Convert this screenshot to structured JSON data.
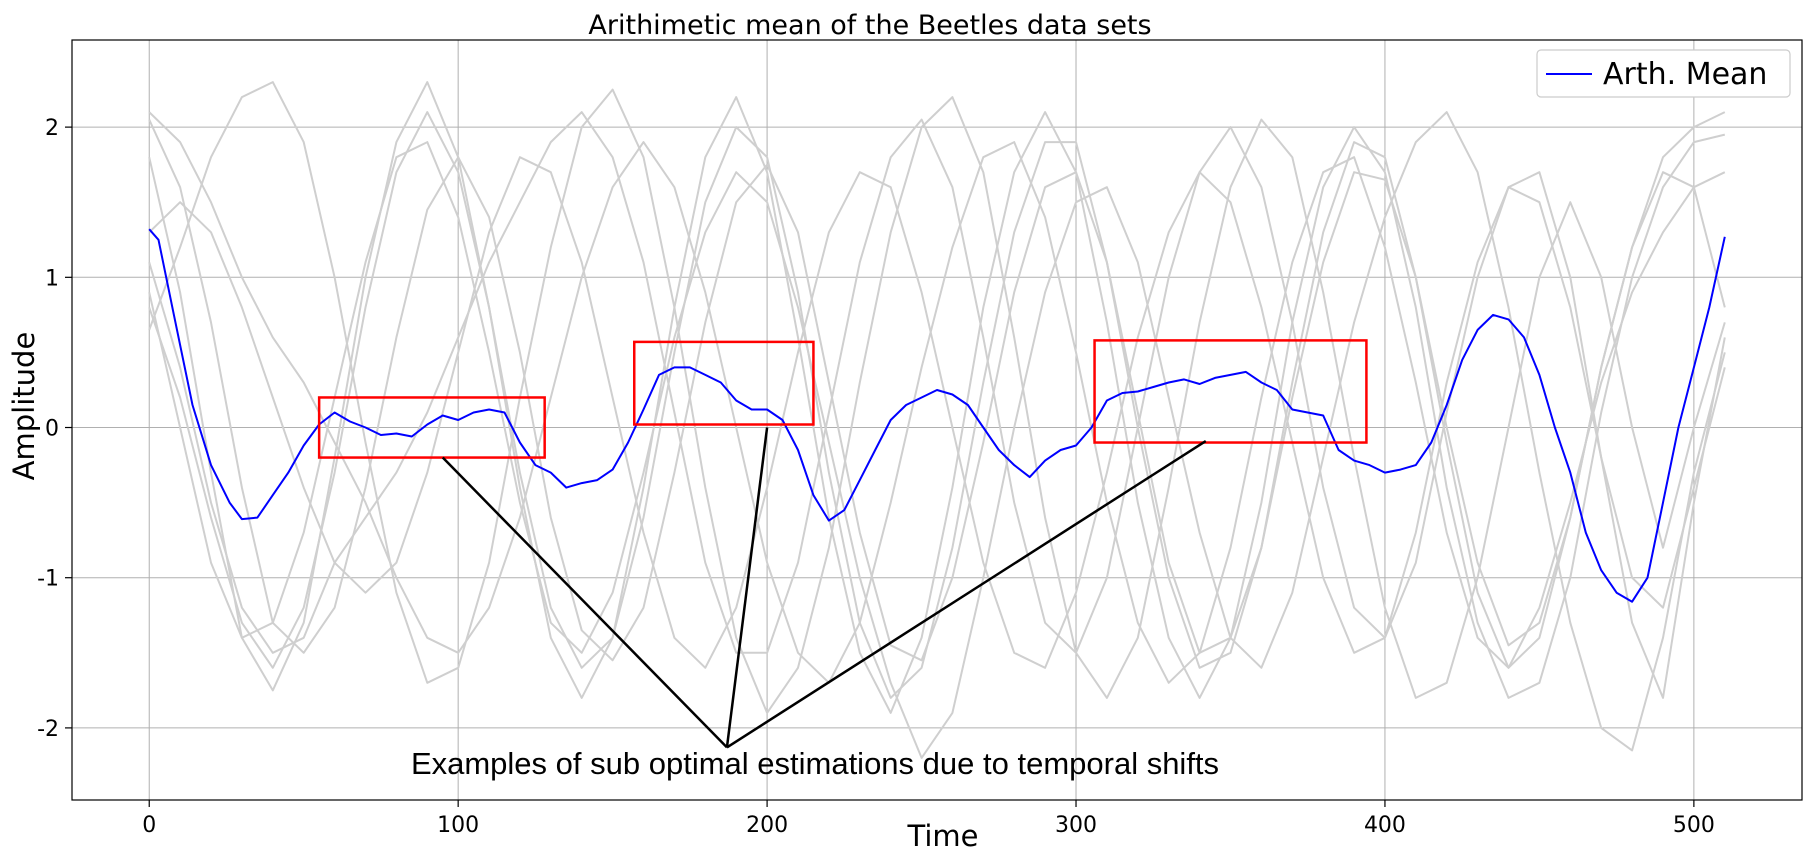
{
  "chart_data": {
    "type": "line",
    "title": "Arithimetic mean of the Beetles data sets",
    "xlabel": "Time",
    "ylabel": "Amplitude",
    "xlim": [
      -25,
      535
    ],
    "ylim": [
      -2.48,
      2.58
    ],
    "x_ticks": [
      0,
      100,
      200,
      300,
      400,
      500
    ],
    "y_ticks": [
      2,
      1,
      0,
      -1,
      -2
    ],
    "grid": true,
    "legend": {
      "placement": "top-right",
      "entries": [
        "Arth. Mean"
      ]
    },
    "colors": {
      "mean": "#0000ff",
      "background_series": "#cfcfcf",
      "highlight_box": "#ff0000",
      "annotation": "#000000",
      "grid": "#b0b0b0"
    },
    "series": [
      {
        "name": "Arth. Mean",
        "x": [
          0,
          3,
          8,
          14,
          20,
          26,
          30,
          35,
          40,
          45,
          50,
          55,
          60,
          65,
          70,
          75,
          80,
          85,
          90,
          95,
          100,
          105,
          110,
          115,
          120,
          125,
          130,
          135,
          140,
          145,
          150,
          155,
          160,
          165,
          170,
          175,
          180,
          185,
          190,
          195,
          200,
          205,
          210,
          215,
          220,
          225,
          230,
          235,
          240,
          245,
          250,
          255,
          260,
          265,
          270,
          275,
          280,
          285,
          290,
          295,
          300,
          305,
          310,
          315,
          320,
          325,
          330,
          335,
          340,
          345,
          350,
          355,
          360,
          365,
          370,
          375,
          380,
          385,
          390,
          395,
          400,
          405,
          410,
          415,
          420,
          425,
          430,
          435,
          440,
          445,
          450,
          455,
          460,
          465,
          470,
          475,
          480,
          485,
          490,
          495,
          500,
          505,
          510
        ],
        "y": [
          1.32,
          1.25,
          0.75,
          0.15,
          -0.25,
          -0.5,
          -0.61,
          -0.6,
          -0.45,
          -0.3,
          -0.12,
          0.02,
          0.1,
          0.04,
          0.0,
          -0.05,
          -0.04,
          -0.06,
          0.02,
          0.08,
          0.05,
          0.1,
          0.12,
          0.1,
          -0.1,
          -0.25,
          -0.3,
          -0.4,
          -0.37,
          -0.35,
          -0.28,
          -0.1,
          0.12,
          0.35,
          0.4,
          0.4,
          0.35,
          0.3,
          0.18,
          0.12,
          0.12,
          0.05,
          -0.15,
          -0.45,
          -0.62,
          -0.55,
          -0.35,
          -0.15,
          0.05,
          0.15,
          0.2,
          0.25,
          0.22,
          0.15,
          0.0,
          -0.15,
          -0.25,
          -0.33,
          -0.22,
          -0.15,
          -0.12,
          0.0,
          0.18,
          0.23,
          0.24,
          0.27,
          0.3,
          0.32,
          0.29,
          0.33,
          0.35,
          0.37,
          0.3,
          0.25,
          0.12,
          0.1,
          0.08,
          -0.15,
          -0.22,
          -0.25,
          -0.3,
          -0.28,
          -0.25,
          -0.1,
          0.15,
          0.45,
          0.65,
          0.75,
          0.72,
          0.6,
          0.35,
          0.0,
          -0.3,
          -0.7,
          -0.95,
          -1.1,
          -1.16,
          -1.0,
          -0.5,
          0.0,
          0.4,
          0.8,
          1.27
        ]
      }
    ],
    "background_series": [
      {
        "x": [
          0,
          10,
          20,
          30,
          40,
          50,
          60,
          70,
          80,
          90,
          100,
          110,
          120,
          130,
          140,
          150,
          160,
          170,
          180,
          190,
          200,
          210,
          220,
          230,
          240,
          250,
          260,
          270,
          280,
          290,
          300,
          310,
          320,
          330,
          340,
          350,
          360,
          370,
          380,
          390,
          400,
          410,
          420,
          430,
          440,
          450,
          460,
          470,
          480,
          490,
          500,
          510
        ],
        "y": [
          2.05,
          1.6,
          0.7,
          -0.4,
          -1.3,
          -1.5,
          -1.2,
          -0.4,
          0.6,
          1.45,
          1.8,
          1.4,
          0.5,
          -0.6,
          -1.35,
          -1.55,
          -1.2,
          -0.3,
          0.7,
          1.5,
          1.75,
          1.3,
          0.3,
          -0.7,
          -1.45,
          -1.55,
          -1.0,
          -0.1,
          0.9,
          1.6,
          1.7,
          1.1,
          0.1,
          -0.9,
          -1.5,
          -1.4,
          -0.8,
          0.2,
          1.1,
          1.7,
          1.65,
          1.0,
          0.0,
          -0.9,
          -1.45,
          -1.3,
          -0.6,
          0.4,
          1.2,
          1.8,
          2.0,
          2.1
        ]
      },
      {
        "x": [
          0,
          10,
          20,
          30,
          40,
          50,
          60,
          70,
          80,
          90,
          100,
          110,
          120,
          130,
          140,
          150,
          160,
          170,
          180,
          190,
          200,
          210,
          220,
          230,
          240,
          250,
          260,
          270,
          280,
          290,
          300,
          310,
          320,
          330,
          340,
          350,
          360,
          370,
          380,
          390,
          400,
          410,
          420,
          430,
          440,
          450,
          460,
          470,
          480,
          490,
          500,
          510
        ],
        "y": [
          0.8,
          0.2,
          -0.6,
          -1.3,
          -1.6,
          -1.2,
          -0.3,
          0.8,
          1.7,
          2.1,
          1.7,
          0.8,
          -0.3,
          -1.2,
          -1.6,
          -1.4,
          -0.6,
          0.5,
          1.5,
          2.0,
          1.8,
          0.9,
          -0.3,
          -1.3,
          -1.8,
          -1.6,
          -0.8,
          0.3,
          1.3,
          1.9,
          1.9,
          1.1,
          0.0,
          -1.0,
          -1.6,
          -1.5,
          -0.8,
          0.3,
          1.3,
          1.9,
          1.8,
          1.0,
          -0.1,
          -1.1,
          -1.6,
          -1.4,
          -0.6,
          0.4,
          1.2,
          1.7,
          1.6,
          0.8
        ]
      },
      {
        "x": [
          0,
          10,
          20,
          30,
          40,
          50,
          60,
          70,
          80,
          90,
          100,
          110,
          120,
          130,
          140,
          150,
          160,
          170,
          180,
          190,
          200,
          210,
          220,
          230,
          240,
          250,
          260,
          270,
          280,
          290,
          300,
          310,
          320,
          330,
          340,
          350,
          360,
          370,
          380,
          390,
          400,
          410,
          420,
          430,
          440,
          450,
          460,
          470,
          480,
          490,
          500,
          510
        ],
        "y": [
          1.8,
          0.9,
          -0.3,
          -1.4,
          -1.75,
          -1.3,
          -0.2,
          1.0,
          1.9,
          2.3,
          1.8,
          0.8,
          -0.4,
          -1.4,
          -1.8,
          -1.4,
          -0.4,
          0.8,
          1.8,
          2.2,
          1.7,
          0.6,
          -0.6,
          -1.5,
          -1.9,
          -1.4,
          -0.4,
          0.8,
          1.7,
          2.1,
          1.7,
          0.7,
          -0.5,
          -1.4,
          -1.8,
          -1.4,
          -0.5,
          0.7,
          1.6,
          2.0,
          1.7,
          0.8,
          -0.4,
          -1.3,
          -1.8,
          -1.7,
          -1.0,
          0.1,
          1.0,
          1.6,
          1.9,
          1.95
        ]
      },
      {
        "x": [
          0,
          10,
          20,
          30,
          40,
          50,
          60,
          70,
          80,
          90,
          100,
          110,
          120,
          130,
          140,
          150,
          160,
          170,
          180,
          190,
          200,
          210,
          220,
          230,
          240,
          250,
          260,
          270,
          280,
          290,
          300,
          310,
          320,
          330,
          340,
          350,
          360,
          370,
          380,
          390,
          400,
          410,
          420,
          430,
          440,
          450,
          460,
          470,
          480,
          490,
          500,
          510
        ],
        "y": [
          0.65,
          1.2,
          1.8,
          2.2,
          2.3,
          1.9,
          1.0,
          -0.1,
          -1.1,
          -1.7,
          -1.6,
          -0.9,
          0.2,
          1.2,
          2.0,
          2.25,
          1.8,
          0.8,
          -0.4,
          -1.4,
          -1.9,
          -1.6,
          -0.8,
          0.3,
          1.3,
          2.0,
          2.2,
          1.7,
          0.6,
          -0.6,
          -1.5,
          -1.8,
          -1.4,
          -0.4,
          0.7,
          1.6,
          2.05,
          1.8,
          0.9,
          -0.2,
          -1.2,
          -1.8,
          -1.7,
          -1.0,
          0.0,
          1.0,
          1.5,
          1.0,
          0.0,
          -0.8,
          0.0,
          0.7
        ]
      },
      {
        "x": [
          0,
          10,
          20,
          30,
          40,
          50,
          60,
          70,
          80,
          90,
          100,
          110,
          120,
          130,
          140,
          150,
          160,
          170,
          180,
          190,
          200,
          210,
          220,
          230,
          240,
          250,
          260,
          270,
          280,
          290,
          300,
          310,
          320,
          330,
          340,
          350,
          360,
          370,
          380,
          390,
          400,
          410,
          420,
          430,
          440,
          450,
          460,
          470,
          480,
          490,
          500,
          510
        ],
        "y": [
          1.1,
          0.4,
          -0.5,
          -1.2,
          -1.5,
          -1.4,
          -0.9,
          -0.6,
          -0.3,
          0.1,
          0.6,
          1.1,
          1.5,
          1.9,
          2.1,
          1.8,
          1.1,
          0.1,
          -0.9,
          -1.5,
          -1.5,
          -0.9,
          0.1,
          1.1,
          1.8,
          2.05,
          1.6,
          0.6,
          -0.5,
          -1.3,
          -1.5,
          -1.0,
          0.0,
          1.0,
          1.7,
          2.0,
          1.6,
          0.7,
          -0.4,
          -1.2,
          -1.4,
          -0.9,
          0.1,
          1.0,
          1.6,
          1.7,
          1.0,
          -0.2,
          -1.3,
          -1.8,
          -0.5,
          0.6
        ]
      },
      {
        "x": [
          0,
          10,
          20,
          30,
          40,
          50,
          60,
          70,
          80,
          90,
          100,
          110,
          120,
          130,
          140,
          150,
          160,
          170,
          180,
          190,
          200,
          210,
          220,
          230,
          240,
          250,
          260,
          270,
          280,
          290,
          300,
          310,
          320,
          330,
          340,
          350,
          360,
          370,
          380,
          390,
          400,
          410,
          420,
          430,
          440,
          450,
          460,
          470,
          480,
          490,
          500,
          510
        ],
        "y": [
          2.1,
          1.9,
          1.5,
          1.0,
          0.6,
          0.3,
          -0.1,
          -0.5,
          -1.0,
          -1.4,
          -1.5,
          -1.2,
          -0.6,
          0.2,
          1.0,
          1.6,
          1.9,
          1.6,
          0.9,
          0.0,
          -0.9,
          -1.5,
          -1.7,
          -1.3,
          -0.5,
          0.4,
          1.2,
          1.8,
          1.9,
          1.4,
          0.5,
          -0.5,
          -1.3,
          -1.7,
          -1.5,
          -0.8,
          0.2,
          1.1,
          1.7,
          1.8,
          1.2,
          0.3,
          -0.7,
          -1.4,
          -1.6,
          -1.2,
          -0.5,
          0.3,
          0.9,
          1.3,
          1.6,
          1.7
        ]
      },
      {
        "x": [
          0,
          10,
          20,
          30,
          40,
          50,
          60,
          70,
          80,
          90,
          100,
          110,
          120,
          130,
          140,
          150,
          160,
          170,
          180,
          190,
          200,
          210,
          220,
          230,
          240,
          250,
          260,
          270,
          280,
          290,
          300,
          310,
          320,
          330,
          340,
          350,
          360,
          370,
          380,
          390,
          400,
          410,
          420,
          430,
          440,
          450,
          460,
          470,
          480,
          490,
          500,
          510
        ],
        "y": [
          0.9,
          0.0,
          -0.9,
          -1.4,
          -1.3,
          -0.7,
          0.2,
          1.1,
          1.8,
          1.9,
          1.4,
          0.5,
          -0.5,
          -1.3,
          -1.5,
          -1.1,
          -0.3,
          0.6,
          1.3,
          1.7,
          1.5,
          0.8,
          -0.1,
          -1.0,
          -1.7,
          -2.2,
          -1.9,
          -1.0,
          0.0,
          0.9,
          1.5,
          1.6,
          1.1,
          0.2,
          -0.7,
          -1.4,
          -1.6,
          -1.1,
          -0.2,
          0.7,
          1.4,
          1.9,
          2.1,
          1.7,
          0.8,
          -0.3,
          -1.3,
          -2.0,
          -2.15,
          -1.4,
          -0.3,
          0.5
        ]
      },
      {
        "x": [
          0,
          10,
          20,
          30,
          40,
          50,
          60,
          70,
          80,
          90,
          100,
          110,
          120,
          130,
          140,
          150,
          160,
          170,
          180,
          190,
          200,
          210,
          220,
          230,
          240,
          250,
          260,
          270,
          280,
          290,
          300,
          310,
          320,
          330,
          340,
          350,
          360,
          370,
          380,
          390,
          400,
          410,
          420,
          430,
          440,
          450,
          460,
          470,
          480,
          490,
          500,
          510
        ],
        "y": [
          1.3,
          1.5,
          1.3,
          0.8,
          0.2,
          -0.4,
          -0.9,
          -1.1,
          -0.9,
          -0.3,
          0.5,
          1.3,
          1.8,
          1.7,
          1.1,
          0.2,
          -0.7,
          -1.4,
          -1.6,
          -1.2,
          -0.4,
          0.5,
          1.3,
          1.7,
          1.6,
          0.9,
          0.0,
          -0.9,
          -1.5,
          -1.6,
          -1.1,
          -0.3,
          0.6,
          1.3,
          1.7,
          1.5,
          0.8,
          -0.1,
          -1.0,
          -1.5,
          -1.4,
          -0.7,
          0.3,
          1.1,
          1.6,
          1.5,
          0.8,
          -0.2,
          -1.0,
          -1.2,
          -0.4,
          0.4
        ]
      }
    ],
    "highlight_boxes": [
      {
        "x0": 55,
        "x1": 128,
        "y0": -0.2,
        "y1": 0.2
      },
      {
        "x0": 157,
        "x1": 215,
        "y0": 0.02,
        "y1": 0.57
      },
      {
        "x0": 306,
        "x1": 394,
        "y0": -0.1,
        "y1": 0.58
      }
    ],
    "annotation": {
      "text": "Examples of sub optimal estimations due to temporal shifts",
      "anchor": {
        "x": 187,
        "y": -2.13
      },
      "targets": [
        {
          "x": 95,
          "y": -0.2
        },
        {
          "x": 200,
          "y": 0.0
        },
        {
          "x": 342,
          "y": -0.09
        }
      ]
    }
  }
}
